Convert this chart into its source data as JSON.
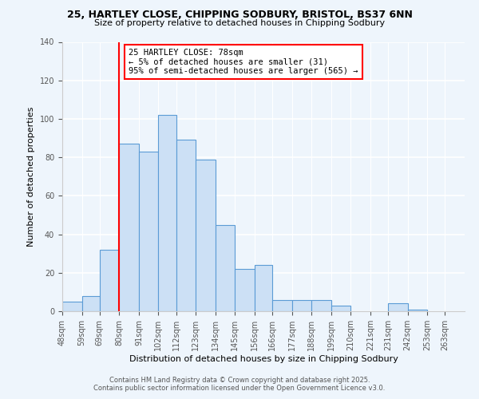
{
  "title1": "25, HARTLEY CLOSE, CHIPPING SODBURY, BRISTOL, BS37 6NN",
  "title2": "Size of property relative to detached houses in Chipping Sodbury",
  "xlabel": "Distribution of detached houses by size in Chipping Sodbury",
  "ylabel": "Number of detached properties",
  "bin_labels": [
    "48sqm",
    "59sqm",
    "69sqm",
    "80sqm",
    "91sqm",
    "102sqm",
    "112sqm",
    "123sqm",
    "134sqm",
    "145sqm",
    "156sqm",
    "166sqm",
    "177sqm",
    "188sqm",
    "199sqm",
    "210sqm",
    "221sqm",
    "231sqm",
    "242sqm",
    "253sqm",
    "263sqm"
  ],
  "bin_edges": [
    48,
    59,
    69,
    80,
    91,
    102,
    112,
    123,
    134,
    145,
    156,
    166,
    177,
    188,
    199,
    210,
    221,
    231,
    242,
    253,
    263,
    274
  ],
  "counts": [
    5,
    8,
    32,
    87,
    83,
    102,
    89,
    79,
    45,
    22,
    24,
    6,
    6,
    6,
    3,
    0,
    0,
    4,
    1,
    0,
    0
  ],
  "bar_facecolor": "#cce0f5",
  "bar_edgecolor": "#5b9bd5",
  "vline_x": 80,
  "vline_color": "red",
  "annotation_title": "25 HARTLEY CLOSE: 78sqm",
  "annotation_line1": "← 5% of detached houses are smaller (31)",
  "annotation_line2": "95% of semi-detached houses are larger (565) →",
  "annotation_box_color": "white",
  "annotation_box_edge": "red",
  "ylim": [
    0,
    140
  ],
  "yticks": [
    0,
    20,
    40,
    60,
    80,
    100,
    120,
    140
  ],
  "footer1": "Contains HM Land Registry data © Crown copyright and database right 2025.",
  "footer2": "Contains public sector information licensed under the Open Government Licence v3.0.",
  "bg_color": "#eef5fc"
}
